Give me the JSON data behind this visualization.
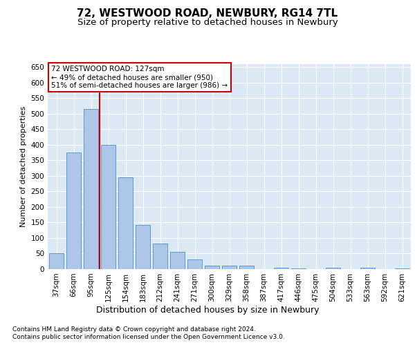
{
  "title": "72, WESTWOOD ROAD, NEWBURY, RG14 7TL",
  "subtitle": "Size of property relative to detached houses in Newbury",
  "xlabel": "Distribution of detached houses by size in Newbury",
  "ylabel": "Number of detached properties",
  "categories": [
    "37sqm",
    "66sqm",
    "95sqm",
    "125sqm",
    "154sqm",
    "183sqm",
    "212sqm",
    "241sqm",
    "271sqm",
    "300sqm",
    "329sqm",
    "358sqm",
    "387sqm",
    "417sqm",
    "446sqm",
    "475sqm",
    "504sqm",
    "533sqm",
    "563sqm",
    "592sqm",
    "621sqm"
  ],
  "values": [
    51,
    375,
    515,
    400,
    295,
    143,
    83,
    56,
    30,
    10,
    10,
    12,
    0,
    5,
    2,
    0,
    5,
    0,
    5,
    0,
    3
  ],
  "bar_color": "#aec6e8",
  "bar_edge_color": "#5b9bd5",
  "vline_color": "#cc0000",
  "vline_bar_index": 3,
  "annotation_text": "72 WESTWOOD ROAD: 127sqm\n← 49% of detached houses are smaller (950)\n51% of semi-detached houses are larger (986) →",
  "annotation_box_color": "#ffffff",
  "annotation_box_edge_color": "#cc0000",
  "fig_background_color": "#ffffff",
  "plot_background_color": "#dce9f5",
  "ylim": [
    0,
    660
  ],
  "yticks": [
    0,
    50,
    100,
    150,
    200,
    250,
    300,
    350,
    400,
    450,
    500,
    550,
    600,
    650
  ],
  "footer_line1": "Contains HM Land Registry data © Crown copyright and database right 2024.",
  "footer_line2": "Contains public sector information licensed under the Open Government Licence v3.0.",
  "title_fontsize": 11,
  "subtitle_fontsize": 9.5,
  "ylabel_fontsize": 8,
  "xlabel_fontsize": 9,
  "tick_fontsize": 7.5,
  "annotation_fontsize": 7.5,
  "footer_fontsize": 6.5
}
